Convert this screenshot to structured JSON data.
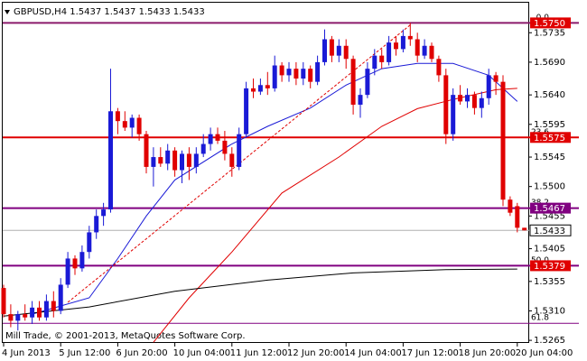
{
  "chart_data": {
    "type": "candlestick",
    "title": "GBPUSD,H4  1.5437 1.5437 1.5433 1.5433",
    "footer": "Mill Trade, © 2001-2013, MetaQuotes Software Corp.",
    "categories": [
      "4 Jun 2013",
      null,
      null,
      null,
      null,
      null,
      null,
      null,
      "5 Jun 12:00",
      null,
      null,
      null,
      null,
      null,
      null,
      null,
      "6 Jun 20:00",
      null,
      null,
      null,
      null,
      null,
      null,
      null,
      "10 Jun 04:00",
      null,
      null,
      null,
      null,
      null,
      null,
      null,
      "11 Jun 12:00",
      null,
      null,
      null,
      null,
      null,
      null,
      null,
      "12 Jun 20:00",
      null,
      null,
      null,
      null,
      null,
      null,
      null,
      "14 Jun 04:00",
      null,
      null,
      null,
      null,
      null,
      null,
      null,
      "17 Jun 12:00",
      null,
      null,
      null,
      null,
      null,
      null,
      null,
      "18 Jun 20:00",
      null,
      null,
      null,
      null,
      null,
      null,
      null,
      "20 Jun 04:00",
      null
    ],
    "open": [
      1.5345,
      1.5305,
      1.5295,
      1.5305,
      1.53,
      1.5315,
      1.53,
      1.5325,
      1.531,
      1.535,
      1.539,
      1.5375,
      1.54,
      1.543,
      1.5455,
      1.5465,
      1.5615,
      1.56,
      1.559,
      1.5605,
      1.558,
      1.553,
      1.5545,
      1.5535,
      1.5555,
      1.5525,
      1.555,
      1.553,
      1.555,
      1.5565,
      1.558,
      1.557,
      1.555,
      1.553,
      1.558,
      1.565,
      1.5645,
      1.5655,
      1.565,
      1.5685,
      1.567,
      1.568,
      1.5665,
      1.568,
      1.566,
      1.569,
      1.5725,
      1.57,
      1.5715,
      1.5695,
      1.5625,
      1.564,
      1.568,
      1.57,
      1.569,
      1.572,
      1.571,
      1.573,
      1.5725,
      1.57,
      1.5715,
      1.5695,
      1.567,
      1.558,
      1.564,
      1.563,
      1.564,
      1.562,
      1.5635,
      1.567,
      1.566,
      1.548,
      1.547,
      1.5437
    ],
    "high": [
      1.535,
      1.532,
      1.531,
      1.532,
      1.5325,
      1.5325,
      1.5335,
      1.534,
      1.536,
      1.54,
      1.5395,
      1.541,
      1.544,
      1.5465,
      1.5475,
      1.568,
      1.562,
      1.5615,
      1.561,
      1.561,
      1.5585,
      1.556,
      1.556,
      1.5565,
      1.556,
      1.5555,
      1.556,
      1.556,
      1.558,
      1.559,
      1.559,
      1.5585,
      1.556,
      1.559,
      1.566,
      1.5665,
      1.5665,
      1.5675,
      1.57,
      1.569,
      1.569,
      1.569,
      1.569,
      1.5685,
      1.57,
      1.574,
      1.573,
      1.5725,
      1.5725,
      1.57,
      1.565,
      1.569,
      1.571,
      1.571,
      1.573,
      1.573,
      1.574,
      1.575,
      1.5735,
      1.5725,
      1.572,
      1.57,
      1.568,
      1.565,
      1.5655,
      1.565,
      1.5645,
      1.5645,
      1.568,
      1.5675,
      1.567,
      1.5485,
      1.5475,
      1.5437
    ],
    "low": [
      1.53,
      1.5285,
      1.528,
      1.5295,
      1.529,
      1.5295,
      1.5295,
      1.53,
      1.5305,
      1.5345,
      1.5365,
      1.537,
      1.539,
      1.542,
      1.544,
      1.546,
      1.558,
      1.5585,
      1.5575,
      1.557,
      1.552,
      1.55,
      1.553,
      1.5525,
      1.5515,
      1.5505,
      1.551,
      1.552,
      1.5545,
      1.5555,
      1.5565,
      1.554,
      1.5515,
      1.5525,
      1.5575,
      1.5635,
      1.564,
      1.564,
      1.5645,
      1.566,
      1.566,
      1.5655,
      1.5655,
      1.565,
      1.5655,
      1.5685,
      1.569,
      1.569,
      1.568,
      1.561,
      1.5605,
      1.5635,
      1.567,
      1.568,
      1.5685,
      1.57,
      1.5705,
      1.5715,
      1.569,
      1.5695,
      1.569,
      1.566,
      1.5565,
      1.557,
      1.5625,
      1.562,
      1.561,
      1.5605,
      1.5625,
      1.564,
      1.547,
      1.5455,
      1.543,
      1.5433
    ],
    "close": [
      1.5305,
      1.5295,
      1.5305,
      1.53,
      1.5315,
      1.53,
      1.5325,
      1.531,
      1.535,
      1.539,
      1.5375,
      1.54,
      1.543,
      1.5455,
      1.5465,
      1.5615,
      1.56,
      1.559,
      1.5605,
      1.558,
      1.553,
      1.5545,
      1.5535,
      1.5555,
      1.5525,
      1.555,
      1.553,
      1.555,
      1.5565,
      1.558,
      1.557,
      1.555,
      1.553,
      1.558,
      1.565,
      1.5645,
      1.5655,
      1.565,
      1.5685,
      1.567,
      1.568,
      1.5665,
      1.568,
      1.566,
      1.569,
      1.5725,
      1.57,
      1.5715,
      1.5695,
      1.5625,
      1.564,
      1.568,
      1.57,
      1.569,
      1.572,
      1.571,
      1.573,
      1.5725,
      1.57,
      1.5715,
      1.5695,
      1.567,
      1.558,
      1.564,
      1.563,
      1.564,
      1.562,
      1.5635,
      1.567,
      1.566,
      1.548,
      1.546,
      1.5437,
      1.5433
    ],
    "up_color": "#1a1ad6",
    "down_color": "#e00000",
    "lines": [
      {
        "color": "#1a1ad6",
        "x": [
          4,
          12,
          16,
          20,
          24,
          32,
          37,
          43,
          48,
          53,
          58,
          63,
          68,
          72
        ],
        "values": [
          1.5305,
          1.533,
          1.539,
          1.5455,
          1.551,
          1.5565,
          1.5592,
          1.562,
          1.5655,
          1.568,
          1.5688,
          1.5688,
          1.567,
          1.563
        ]
      },
      {
        "color": "#e00000",
        "x": [
          21,
          26,
          32,
          39,
          47,
          53,
          58,
          63,
          69,
          72
        ],
        "values": [
          1.5262,
          1.533,
          1.54,
          1.549,
          1.5545,
          1.5592,
          1.5619,
          1.5633,
          1.5648,
          1.565
        ]
      },
      {
        "color": "#000000",
        "x": [
          0,
          12,
          24,
          37,
          49,
          62,
          72
        ],
        "values": [
          1.5302,
          1.5316,
          1.534,
          1.5357,
          1.5368,
          1.5373,
          1.5374
        ]
      }
    ],
    "trendline": {
      "color": "#e00000",
      "x": [
        9,
        57
      ],
      "values": [
        1.5323,
        1.5747
      ]
    },
    "levels": [
      {
        "value": 1.575,
        "label": "1.5750",
        "fib_label": "0.0",
        "color": "#8b1a6b",
        "box_color": "#e00000"
      },
      {
        "value": 1.5575,
        "label": "1.5575",
        "fib_label": "23.6",
        "color": "#e00000",
        "box_color": "#e00000"
      },
      {
        "value": 1.5467,
        "label": "1.5467",
        "fib_label": "38.2",
        "color": "#800080",
        "box_color": "#800080"
      },
      {
        "value": 1.5379,
        "label": "1.5379",
        "fib_label": "50.0",
        "color": "#800080",
        "box_color": "#e00000"
      },
      {
        "value": 1.5291,
        "fib_label": "61.8",
        "color": "#800080"
      }
    ],
    "current_price": {
      "value": 1.5433,
      "label": "1.5433",
      "color": "#b0b0b0"
    },
    "ylim": [
      1.5261,
      1.5785
    ],
    "yticks": [
      {
        "value": 1.5735,
        "label": "1.5735"
      },
      {
        "value": 1.569,
        "label": "1.5690"
      },
      {
        "value": 1.564,
        "label": "1.5640"
      },
      {
        "value": 1.5595,
        "label": "1.5595"
      },
      {
        "value": 1.5545,
        "label": "1.5545"
      },
      {
        "value": 1.55,
        "label": "1.5500"
      },
      {
        "value": 1.5455,
        "label": "1.5455"
      },
      {
        "value": 1.5405,
        "label": "1.5405"
      },
      {
        "value": 1.5355,
        "label": "1.5355"
      },
      {
        "value": 1.531,
        "label": "1.5310"
      },
      {
        "value": 1.5265,
        "label": "1.5265"
      }
    ]
  }
}
